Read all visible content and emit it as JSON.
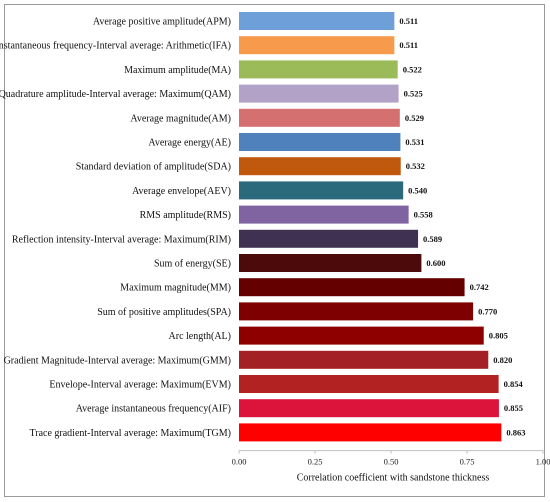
{
  "chart_data": {
    "type": "bar",
    "orientation": "horizontal",
    "title": "",
    "xlabel": "Correlation coefficient with sandstone thickness",
    "ylabel": "",
    "xlim": [
      0,
      1
    ],
    "xticks": [
      "0.00",
      "0.25",
      "0.50",
      "0.75",
      "1.00"
    ],
    "grid": false,
    "legend": "none",
    "categories": [
      "Average positive amplitude(APM)",
      "Instantaneous frequency-Interval average: Arithmetic(IFA)",
      "Maximum amplitude(MA)",
      "Quadrature amplitude-Interval average: Maximum(QAM)",
      "Average magnitude(AM)",
      "Average energy(AE)",
      "Standard deviation of amplitude(SDA)",
      "Average envelope(AEV)",
      "RMS amplitude(RMS)",
      "Reflection intensity-Interval average:  Maximum(RIM)",
      "Sum of energy(SE)",
      "Maximum magnitude(MM)",
      "Sum of positive amplitudes(SPA)",
      "Arc length(AL)",
      "Gradient Magnitude-Interval average: Maximum(GMM)",
      "Envelope-Interval average: Maximum(EVM)",
      "Average instantaneous frequency(AIF)",
      "Trace gradient-Interval average: Maximum(TGM)"
    ],
    "values": [
      0.511,
      0.511,
      0.522,
      0.525,
      0.529,
      0.531,
      0.532,
      0.54,
      0.558,
      0.589,
      0.6,
      0.742,
      0.77,
      0.805,
      0.82,
      0.854,
      0.855,
      0.863
    ],
    "value_labels": [
      "0.511",
      "0.511",
      "0.522",
      "0.525",
      "0.529",
      "0.531",
      "0.532",
      "0.540",
      "0.558",
      "0.589",
      "0.600",
      "0.742",
      "0.770",
      "0.805",
      "0.820",
      "0.854",
      "0.855",
      "0.863"
    ],
    "colors": [
      "#6f9fd8",
      "#f79a4c",
      "#9bbb59",
      "#b3a2c7",
      "#d47070",
      "#4f81bd",
      "#c0590e",
      "#2b6a7d",
      "#8064a2",
      "#3f3151",
      "#4d0a0a",
      "#650000",
      "#7f0000",
      "#8e0000",
      "#a32025",
      "#b22222",
      "#dc143c",
      "#ff0000"
    ]
  }
}
